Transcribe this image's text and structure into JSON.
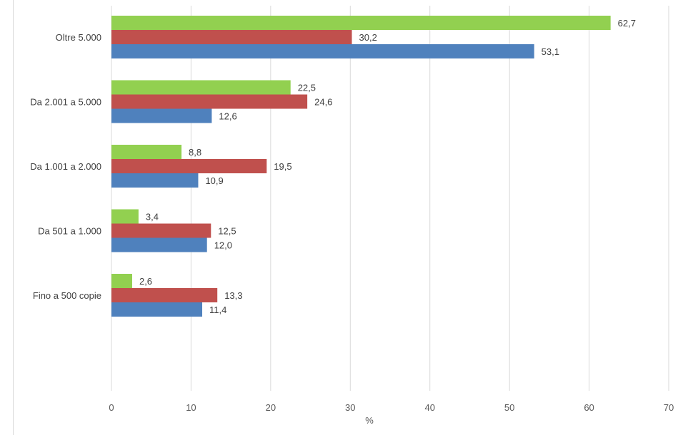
{
  "chart_data": {
    "type": "bar",
    "orientation": "horizontal",
    "title": "",
    "xlabel": "%",
    "ylabel": "",
    "xlim": [
      0,
      70
    ],
    "xticks": [
      0,
      10,
      20,
      30,
      40,
      50,
      60,
      70
    ],
    "grid": "vertical",
    "legend": "none",
    "categories": [
      "Oltre 5.000",
      "Da 2.001 a 5.000",
      "Da 1.001 a 2.000",
      "Da 501 a 1.000",
      "Fino a 500 copie"
    ],
    "series": [
      {
        "name": "green",
        "color": "#92d050",
        "values": [
          62.7,
          22.5,
          8.8,
          3.4,
          2.6
        ],
        "labels": [
          "62,7",
          "22,5",
          "8,8",
          "3,4",
          "2,6"
        ]
      },
      {
        "name": "red",
        "color": "#c0504d",
        "values": [
          30.2,
          24.6,
          19.5,
          12.5,
          13.3
        ],
        "labels": [
          "30,2",
          "24,6",
          "19,5",
          "12,5",
          "13,3"
        ]
      },
      {
        "name": "blue",
        "color": "#4f81bd",
        "values": [
          53.1,
          12.6,
          10.9,
          12.0,
          11.4
        ],
        "labels": [
          "53,1",
          "12,6",
          "10,9",
          "12,0",
          "11,4"
        ]
      }
    ]
  }
}
